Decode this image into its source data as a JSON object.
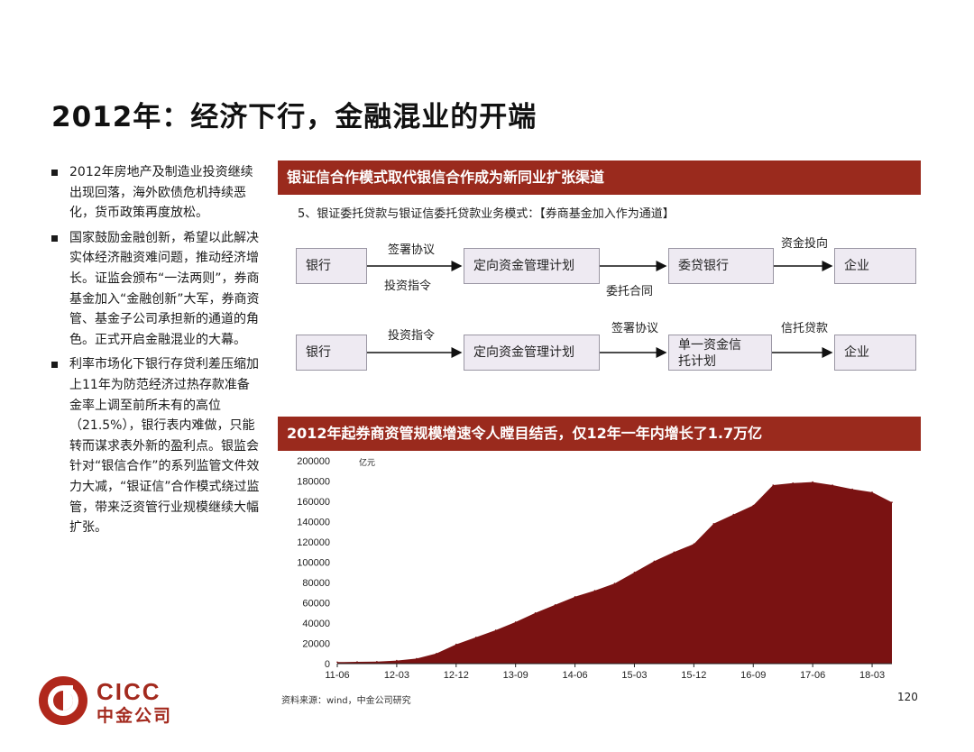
{
  "title": "2012年：经济下行，金融混业的开端",
  "bullets": [
    "2012年房地产及制造业投资继续出现回落，海外欧债危机持续恶化，货币政策再度放松。",
    "国家鼓励金融创新，希望以此解决实体经济融资难问题，推动经济增长。证监会颁布“一法两则”，券商基金加入“金融创新”大军，券商资管、基金子公司承担新的通道的角色。正式开启金融混业的大幕。",
    "利率市场化下银行存贷利差压缩加上11年为防范经济过热存款准备金率上调至前所未有的高位（21.5%），银行表内难做，只能转而谋求表外新的盈利点。银监会针对“银信合作”的系列监管文件效力大减，“银证信”合作模式绕过监管，带来泛资管行业规模继续大幅扩张。"
  ],
  "diagram": {
    "banner": "银证信合作模式取代银信合作成为新同业扩张渠道",
    "subtitle": "5、银证委托贷款与银证信委托贷款业务模式：【券商基金加入作为通道】",
    "row1": {
      "boxes": [
        "银行",
        "定向资金管理计划",
        "委贷银行",
        "企业"
      ],
      "labels_above": [
        "签署协议",
        "资金投向"
      ],
      "labels_below": [
        "投资指令",
        "委托合同"
      ]
    },
    "row2": {
      "boxes": [
        "银行",
        "定向资金管理计划",
        "单一资金信托计划",
        "企业"
      ],
      "labels_above": [
        "投资指令",
        "签署协议",
        "信托贷款"
      ]
    }
  },
  "chart_banner": "2012年起券商资管规模增速令人瞠目结舌，仅12年一年内增长了1.7万亿",
  "chart_data": {
    "type": "area",
    "ylabel": "亿元",
    "ylim": [
      0,
      200000
    ],
    "yticks": [
      "200000",
      "180000",
      "160000",
      "140000",
      "120000",
      "100000",
      "80000",
      "60000",
      "40000",
      "20000",
      "0"
    ],
    "xticks": [
      "11-06",
      "12-03",
      "12-12",
      "13-09",
      "14-06",
      "15-03",
      "15-12",
      "16-09",
      "17-06",
      "18-03"
    ],
    "series": [
      {
        "x": [
          "11-06",
          "11-09",
          "11-12",
          "12-03",
          "12-06",
          "12-09",
          "12-12",
          "13-03",
          "13-06",
          "13-09",
          "13-12",
          "14-03",
          "14-06",
          "14-09",
          "14-12",
          "15-03",
          "15-06",
          "15-09",
          "15-12",
          "16-03",
          "16-06",
          "16-09",
          "16-12",
          "17-03",
          "17-06",
          "17-09",
          "17-12",
          "18-03",
          "18-06"
        ],
        "values": [
          1500,
          1800,
          2000,
          3000,
          5000,
          10000,
          19000,
          26000,
          33000,
          41000,
          50000,
          58000,
          66000,
          72000,
          79000,
          90000,
          101000,
          110000,
          118000,
          138000,
          147000,
          156000,
          176000,
          178000,
          179000,
          176000,
          172000,
          169000,
          159000
        ]
      }
    ],
    "color": "#7a1212"
  },
  "source": "资料来源：wind，中金公司研究",
  "page_number": "120",
  "logo": {
    "en": "CICC",
    "cn": "中金公司"
  }
}
